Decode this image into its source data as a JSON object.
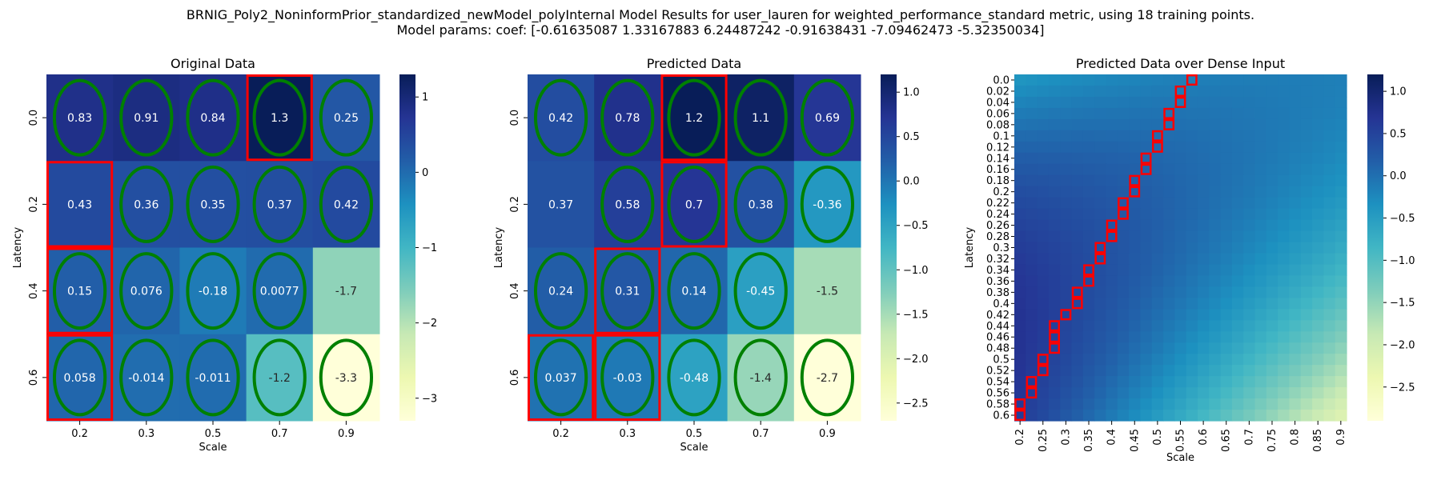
{
  "figure": {
    "title_line1": "BRNIG_Poly2_NoninformPrior_standardized_newModel_polyInternal Model Results for user_lauren for weighted_performance_standard metric, using 18 training points.",
    "title_line2": "Model params: coef: [-0.61635087  1.33167883  6.24487242 -0.91638431 -7.09462473 -5.32350034]"
  },
  "colormap": [
    "#ffffd9",
    "#edf8b1",
    "#c7e9b4",
    "#7fcdbb",
    "#41b6c4",
    "#1d91c0",
    "#225ea8",
    "#253494",
    "#081d58"
  ],
  "marker_colors": {
    "circle": "#008000",
    "rect": "#ff0000"
  },
  "chart_data": [
    {
      "type": "heatmap",
      "title": "Original Data",
      "xlabel": "Scale",
      "ylabel": "Latency",
      "x_categories": [
        "0.2",
        "0.3",
        "0.5",
        "0.7",
        "0.9"
      ],
      "y_categories": [
        "0.0",
        "0.2",
        "0.4",
        "0.6"
      ],
      "values": [
        [
          0.83,
          0.91,
          0.84,
          1.3,
          0.25
        ],
        [
          0.43,
          0.36,
          0.35,
          0.37,
          0.42
        ],
        [
          0.15,
          0.076,
          -0.18,
          0.0077,
          -1.7
        ],
        [
          0.058,
          -0.014,
          -0.011,
          -1.2,
          -3.3
        ]
      ],
      "cell_labels": [
        [
          "0.83",
          "0.91",
          "0.84",
          "1.3",
          "0.25"
        ],
        [
          "0.43",
          "0.36",
          "0.35",
          "0.37",
          "0.42"
        ],
        [
          "0.15",
          "0.076",
          "-0.18",
          "0.0077",
          "-1.7"
        ],
        [
          "0.058",
          "-0.014",
          "-0.011",
          "-1.2",
          "-3.3"
        ]
      ],
      "circled_cells": [
        [
          0,
          0
        ],
        [
          0,
          1
        ],
        [
          0,
          2
        ],
        [
          0,
          3
        ],
        [
          0,
          4
        ],
        [
          1,
          1
        ],
        [
          1,
          2
        ],
        [
          1,
          3
        ],
        [
          1,
          4
        ],
        [
          2,
          0
        ],
        [
          2,
          1
        ],
        [
          2,
          2
        ],
        [
          2,
          3
        ],
        [
          3,
          0
        ],
        [
          3,
          1
        ],
        [
          3,
          2
        ],
        [
          3,
          3
        ],
        [
          3,
          4
        ]
      ],
      "boxed_cells": [
        [
          0,
          3
        ],
        [
          1,
          0
        ],
        [
          2,
          0
        ],
        [
          3,
          0
        ]
      ],
      "colorbar": {
        "vmin": -3.3,
        "vmax": 1.3,
        "ticks": [
          1,
          0,
          -1,
          -2,
          -3
        ],
        "tick_labels": [
          "1",
          "0",
          "−1",
          "−2",
          "−3"
        ]
      }
    },
    {
      "type": "heatmap",
      "title": "Predicted Data",
      "xlabel": "Scale",
      "ylabel": "Latency",
      "x_categories": [
        "0.2",
        "0.3",
        "0.5",
        "0.7",
        "0.9"
      ],
      "y_categories": [
        "0.0",
        "0.2",
        "0.4",
        "0.6"
      ],
      "values": [
        [
          0.42,
          0.78,
          1.2,
          1.1,
          0.69
        ],
        [
          0.37,
          0.58,
          0.7,
          0.38,
          -0.36
        ],
        [
          0.24,
          0.31,
          0.14,
          -0.45,
          -1.5
        ],
        [
          0.037,
          -0.03,
          -0.48,
          -1.4,
          -2.7
        ]
      ],
      "cell_labels": [
        [
          "0.42",
          "0.78",
          "1.2",
          "1.1",
          "0.69"
        ],
        [
          "0.37",
          "0.58",
          "0.7",
          "0.38",
          "-0.36"
        ],
        [
          "0.24",
          "0.31",
          "0.14",
          "-0.45",
          "-1.5"
        ],
        [
          "0.037",
          "-0.03",
          "-0.48",
          "-1.4",
          "-2.7"
        ]
      ],
      "circled_cells": [
        [
          0,
          0
        ],
        [
          0,
          1
        ],
        [
          0,
          2
        ],
        [
          0,
          3
        ],
        [
          0,
          4
        ],
        [
          1,
          1
        ],
        [
          1,
          2
        ],
        [
          1,
          3
        ],
        [
          1,
          4
        ],
        [
          2,
          0
        ],
        [
          2,
          1
        ],
        [
          2,
          2
        ],
        [
          2,
          3
        ],
        [
          3,
          0
        ],
        [
          3,
          1
        ],
        [
          3,
          2
        ],
        [
          3,
          3
        ],
        [
          3,
          4
        ]
      ],
      "boxed_cells": [
        [
          0,
          2
        ],
        [
          1,
          2
        ],
        [
          2,
          1
        ],
        [
          3,
          0
        ],
        [
          3,
          1
        ]
      ],
      "colorbar": {
        "vmin": -2.7,
        "vmax": 1.2,
        "ticks": [
          1.0,
          0.5,
          0.0,
          -0.5,
          -1.0,
          -1.5,
          -2.0,
          -2.5
        ],
        "tick_labels": [
          "1.0",
          "0.5",
          "0.0",
          "−0.5",
          "−1.0",
          "−1.5",
          "−2.0",
          "−2.5"
        ]
      }
    },
    {
      "type": "heatmap",
      "title": "Predicted Data over Dense Input",
      "xlabel": "Scale",
      "ylabel": "Latency",
      "x_categories": [
        "0.2",
        "0.25",
        "0.3",
        "0.35",
        "0.4",
        "0.45",
        "0.5",
        "0.55",
        "0.6",
        "0.65",
        "0.7",
        "0.75",
        "0.8",
        "0.85",
        "0.9"
      ],
      "y_categories": [
        "0.0",
        "0.02",
        "0.04",
        "0.06",
        "0.08",
        "0.1",
        "0.12",
        "0.14",
        "0.16",
        "0.18",
        "0.2",
        "0.22",
        "0.24",
        "0.26",
        "0.28",
        "0.3",
        "0.32",
        "0.34",
        "0.36",
        "0.38",
        "0.4",
        "0.42",
        "0.44",
        "0.46",
        "0.48",
        "0.5",
        "0.52",
        "0.54",
        "0.56",
        "0.58",
        "0.6"
      ],
      "x_range": [
        0.2,
        0.9
      ],
      "y_range": [
        0.0,
        0.6
      ],
      "model_coef": [
        -0.61635087,
        1.33167883,
        6.24487242,
        -0.91638431,
        -7.09462473,
        -5.32350034
      ],
      "ridge_cells_xy": [
        [
          0.2,
          0.6
        ],
        [
          0.2,
          0.58
        ],
        [
          0.225,
          0.56
        ],
        [
          0.225,
          0.54
        ],
        [
          0.25,
          0.52
        ],
        [
          0.25,
          0.5
        ],
        [
          0.275,
          0.48
        ],
        [
          0.275,
          0.46
        ],
        [
          0.275,
          0.44
        ],
        [
          0.3,
          0.42
        ],
        [
          0.325,
          0.4
        ],
        [
          0.325,
          0.38
        ],
        [
          0.35,
          0.36
        ],
        [
          0.35,
          0.34
        ],
        [
          0.375,
          0.32
        ],
        [
          0.375,
          0.3
        ],
        [
          0.4,
          0.28
        ],
        [
          0.4,
          0.26
        ],
        [
          0.425,
          0.24
        ],
        [
          0.425,
          0.22
        ],
        [
          0.45,
          0.2
        ],
        [
          0.45,
          0.18
        ],
        [
          0.475,
          0.16
        ],
        [
          0.475,
          0.14
        ],
        [
          0.5,
          0.12
        ],
        [
          0.5,
          0.1
        ],
        [
          0.525,
          0.08
        ],
        [
          0.525,
          0.06
        ],
        [
          0.55,
          0.04
        ],
        [
          0.55,
          0.02
        ],
        [
          0.575,
          0.0
        ]
      ],
      "colorbar": {
        "vmin": -2.9,
        "vmax": 1.2,
        "ticks": [
          1.0,
          0.5,
          0.0,
          -0.5,
          -1.0,
          -1.5,
          -2.0,
          -2.5
        ],
        "tick_labels": [
          "1.0",
          "0.5",
          "0.0",
          "−0.5",
          "−1.0",
          "−1.5",
          "−2.0",
          "−2.5"
        ]
      }
    }
  ]
}
